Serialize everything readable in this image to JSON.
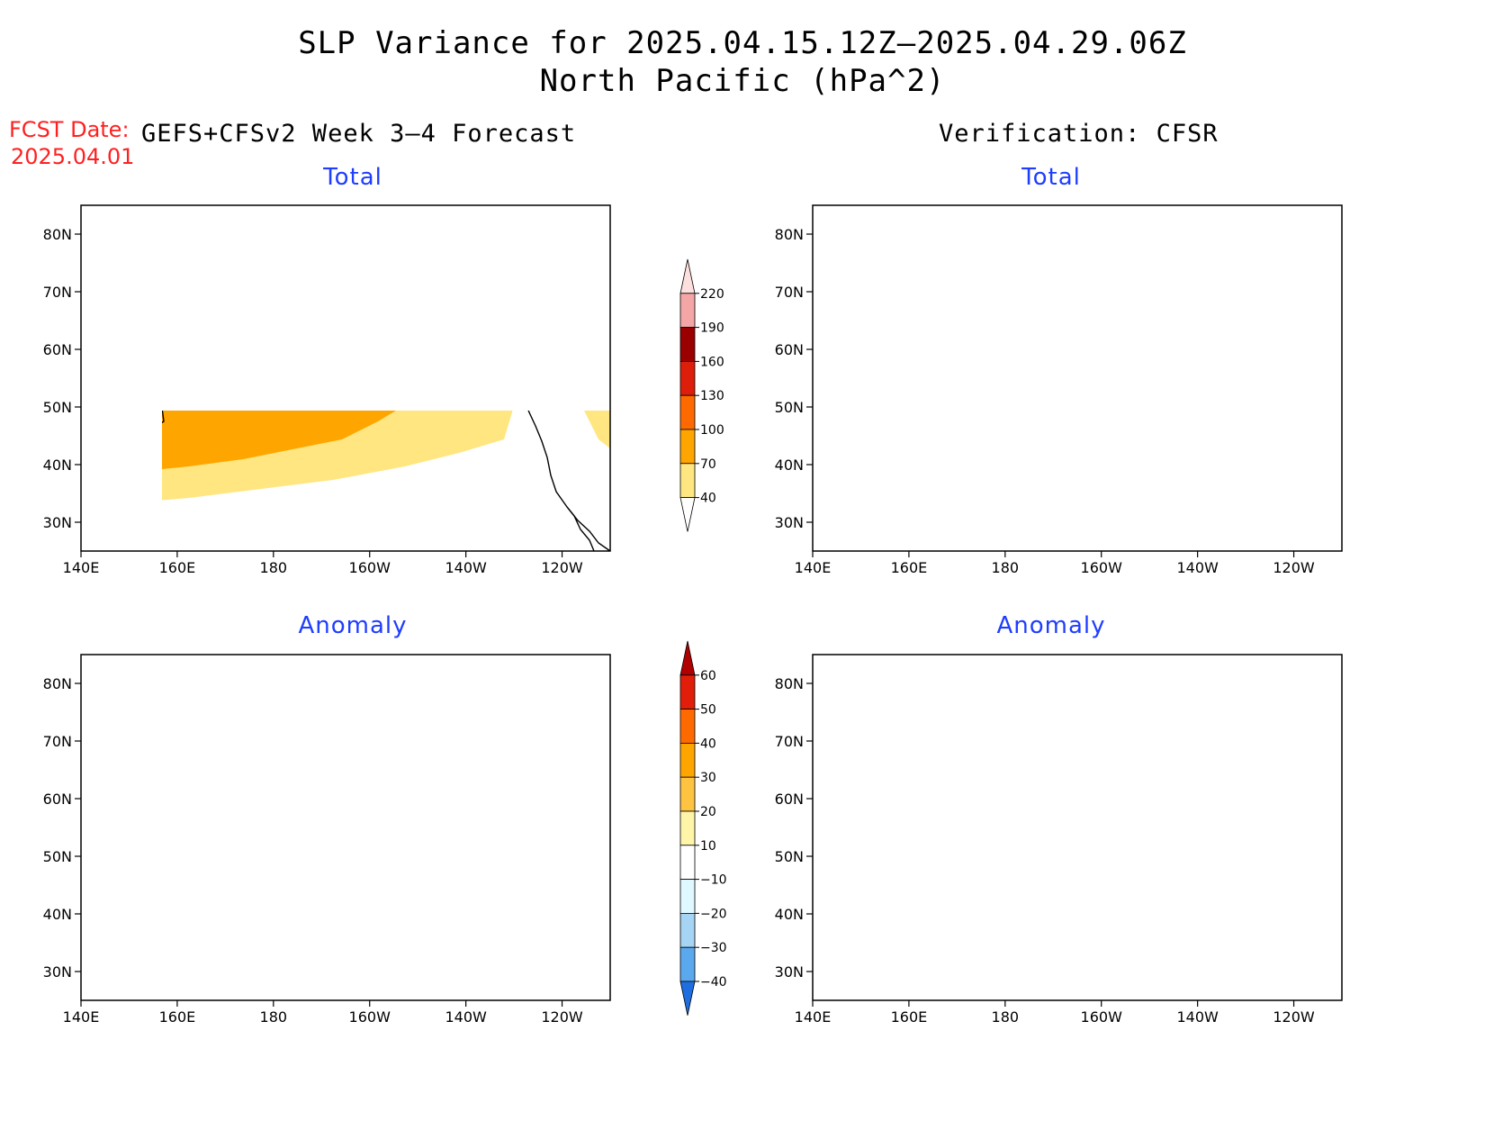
{
  "header": {
    "title_line1": "SLP Variance for 2025.04.15.12Z–2025.04.29.06Z",
    "title_line2": "North Pacific (hPa^2)",
    "fcst_label": "FCST Date:",
    "fcst_date": "2025.04.01",
    "forecast_title": "GEFS+CFSv2 Week 3–4 Forecast",
    "verification_title": "Verification: CFSR"
  },
  "panels": {
    "forecast_total_title": "Total",
    "verification_total_title": "Total",
    "forecast_anomaly_title": "Anomaly",
    "verification_anomaly_title": "Anomaly"
  },
  "axes": {
    "lat_labels": [
      "80N",
      "70N",
      "60N",
      "50N",
      "40N",
      "30N"
    ],
    "lat_values": [
      80,
      70,
      60,
      50,
      40,
      30
    ],
    "lon_labels": [
      "140E",
      "160E",
      "180",
      "160W",
      "140W",
      "120W"
    ],
    "lon_values": [
      140,
      160,
      180,
      200,
      220,
      240
    ],
    "lon_range": [
      140,
      250
    ],
    "lat_range": [
      25,
      85
    ]
  },
  "colorbars": {
    "total": {
      "labels": [
        "220",
        "190",
        "160",
        "130",
        "100",
        "70",
        "40"
      ],
      "colors": [
        "#fde0dd",
        "#f4a6a6",
        "#9b0000",
        "#dd1e0a",
        "#ff6a00",
        "#ffa500",
        "#ffe680",
        "#ffffff"
      ]
    },
    "anomaly": {
      "labels": [
        "60",
        "50",
        "40",
        "30",
        "20",
        "10",
        "−10",
        "−20",
        "−30",
        "−40"
      ],
      "colors": [
        "#b00000",
        "#e01e0a",
        "#ff6a00",
        "#ffa500",
        "#ffc342",
        "#fff5a8",
        "#ffffff",
        "#e0f8ff",
        "#a6d4f5",
        "#5aa8ee",
        "#1f6ee0"
      ]
    }
  },
  "colors": {
    "label_red": "#ff2020",
    "panel_title_blue": "#1f3dff"
  }
}
